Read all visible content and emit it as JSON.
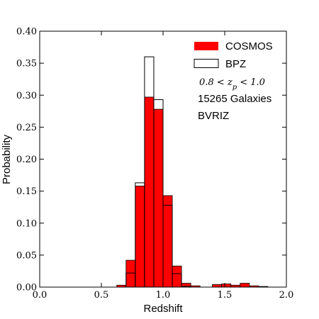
{
  "chart_data": {
    "type": "bar",
    "xlabel": "Redshift",
    "ylabel": "Probability",
    "xlim": [
      0.0,
      2.0
    ],
    "ylim": [
      0.0,
      0.4
    ],
    "xticks": [
      "0.0",
      "0.5",
      "1.0",
      "1.5",
      "2.0"
    ],
    "yticks": [
      "0.00",
      "0.05",
      "0.10",
      "0.15",
      "0.20",
      "0.25",
      "0.30",
      "0.35",
      "0.40"
    ],
    "bin_width": 0.075,
    "grid": false,
    "legend_position": "top-right",
    "series": [
      {
        "name": "COSMOS",
        "style": "filled",
        "color": "#ff0000",
        "bins": [
          {
            "x0": 0.625,
            "x1": 0.7,
            "value": 0.003
          },
          {
            "x0": 0.7,
            "x1": 0.775,
            "value": 0.042
          },
          {
            "x0": 0.775,
            "x1": 0.85,
            "value": 0.158
          },
          {
            "x0": 0.85,
            "x1": 0.925,
            "value": 0.297
          },
          {
            "x0": 0.925,
            "x1": 1.0,
            "value": 0.278
          },
          {
            "x0": 1.0,
            "x1": 1.075,
            "value": 0.143
          },
          {
            "x0": 1.075,
            "x1": 1.15,
            "value": 0.033
          },
          {
            "x0": 1.15,
            "x1": 1.225,
            "value": 0.006
          },
          {
            "x0": 1.225,
            "x1": 1.3,
            "value": 0.002
          },
          {
            "x0": 1.4,
            "x1": 1.475,
            "value": 0.004
          },
          {
            "x0": 1.475,
            "x1": 1.55,
            "value": 0.005
          },
          {
            "x0": 1.55,
            "x1": 1.625,
            "value": 0.003
          },
          {
            "x0": 1.625,
            "x1": 1.7,
            "value": 0.006
          },
          {
            "x0": 1.7,
            "x1": 1.775,
            "value": 0.002
          },
          {
            "x0": 1.775,
            "x1": 1.85,
            "value": 0.001
          }
        ]
      },
      {
        "name": "BPZ",
        "style": "outline",
        "color": "#000000",
        "bins": [
          {
            "x0": 0.7,
            "x1": 0.775,
            "value": 0.022
          },
          {
            "x0": 0.775,
            "x1": 0.85,
            "value": 0.163
          },
          {
            "x0": 0.85,
            "x1": 0.925,
            "value": 0.36
          },
          {
            "x0": 0.925,
            "x1": 1.0,
            "value": 0.293
          },
          {
            "x0": 1.0,
            "x1": 1.075,
            "value": 0.128
          },
          {
            "x0": 1.075,
            "x1": 1.15,
            "value": 0.021
          },
          {
            "x0": 1.15,
            "x1": 1.225,
            "value": 0.001
          }
        ]
      }
    ],
    "annotations": [
      "0.8 < z_p < 1.0",
      "15265 Galaxies",
      "BVRIZ"
    ]
  }
}
